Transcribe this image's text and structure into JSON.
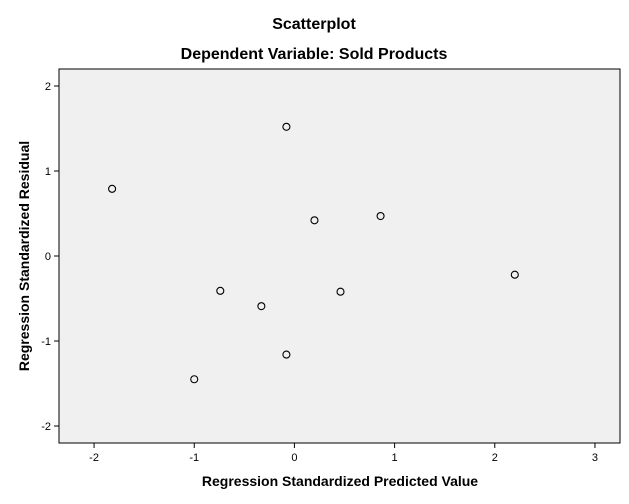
{
  "chart_data": {
    "type": "scatter",
    "title": "Scatterplot",
    "subtitle": "Dependent Variable: Sold Products",
    "xlabel": "Regression Standardized Predicted Value",
    "ylabel": "Regression Standardized Residual",
    "xlim": [
      -2.35,
      3.25
    ],
    "ylim": [
      -2.2,
      2.2
    ],
    "xticks": [
      -2,
      -1,
      0,
      1,
      2,
      3
    ],
    "yticks": [
      -2,
      -1,
      0,
      1,
      2
    ],
    "grid": false,
    "colors": {
      "plot_background": "#f0f0f0",
      "marker_stroke": "#000000",
      "frame": "#000000"
    },
    "points": [
      {
        "x": -1.82,
        "y": 0.79
      },
      {
        "x": -0.08,
        "y": 1.52
      },
      {
        "x": 0.2,
        "y": 0.42
      },
      {
        "x": 0.86,
        "y": 0.47
      },
      {
        "x": 2.2,
        "y": -0.22
      },
      {
        "x": -0.74,
        "y": -0.41
      },
      {
        "x": -0.33,
        "y": -0.59
      },
      {
        "x": 0.46,
        "y": -0.42
      },
      {
        "x": -0.08,
        "y": -1.16
      },
      {
        "x": -1.0,
        "y": -1.45
      }
    ]
  }
}
